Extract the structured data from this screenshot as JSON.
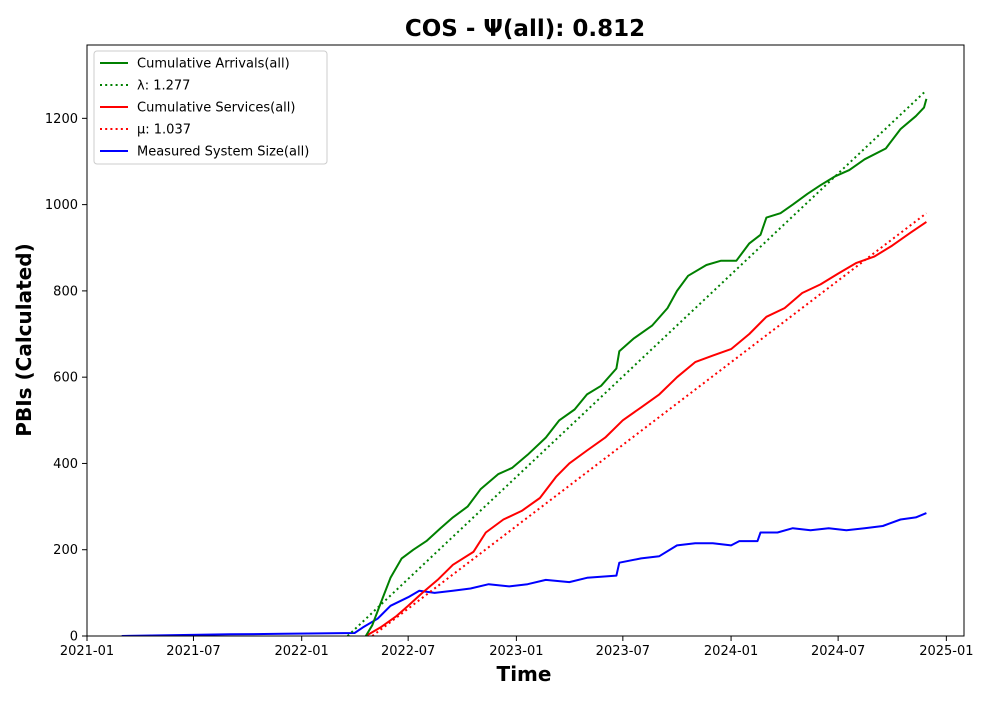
{
  "chart_data": {
    "type": "line",
    "title": "COS -  Ψ(all): 0.812",
    "xlabel": "Time",
    "ylabel": "PBIs (Calculated)",
    "xlim": [
      "2021-01-01",
      "2025-01-31"
    ],
    "ylim": [
      0,
      1370
    ],
    "x_ticks": [
      "2021-01",
      "2021-07",
      "2022-01",
      "2022-07",
      "2023-01",
      "2023-07",
      "2024-01",
      "2024-07",
      "2025-01"
    ],
    "y_ticks": [
      0,
      200,
      400,
      600,
      800,
      1000,
      1200
    ],
    "grid": false,
    "legend_position": "top-left",
    "series": [
      {
        "name": "Cumulative Arrivals(all)",
        "color": "#008000",
        "style": "solid",
        "points": [
          [
            "2022-04-20",
            0
          ],
          [
            "2022-05-01",
            25
          ],
          [
            "2022-05-15",
            75
          ],
          [
            "2022-06-01",
            135
          ],
          [
            "2022-06-20",
            180
          ],
          [
            "2022-07-10",
            200
          ],
          [
            "2022-08-01",
            220
          ],
          [
            "2022-08-25",
            250
          ],
          [
            "2022-09-15",
            275
          ],
          [
            "2022-10-10",
            300
          ],
          [
            "2022-11-01",
            340
          ],
          [
            "2022-12-01",
            375
          ],
          [
            "2022-12-25",
            390
          ],
          [
            "2023-01-20",
            420
          ],
          [
            "2023-02-20",
            460
          ],
          [
            "2023-03-15",
            500
          ],
          [
            "2023-04-10",
            525
          ],
          [
            "2023-05-01",
            560
          ],
          [
            "2023-05-25",
            580
          ],
          [
            "2023-06-20",
            620
          ],
          [
            "2023-06-25",
            660
          ],
          [
            "2023-07-20",
            690
          ],
          [
            "2023-08-20",
            720
          ],
          [
            "2023-09-15",
            760
          ],
          [
            "2023-10-01",
            800
          ],
          [
            "2023-10-20",
            835
          ],
          [
            "2023-11-20",
            860
          ],
          [
            "2023-12-15",
            870
          ],
          [
            "2024-01-10",
            870
          ],
          [
            "2024-02-01",
            910
          ],
          [
            "2024-02-20",
            930
          ],
          [
            "2024-03-01",
            970
          ],
          [
            "2024-03-25",
            980
          ],
          [
            "2024-04-15",
            1000
          ],
          [
            "2024-05-10",
            1025
          ],
          [
            "2024-06-01",
            1045
          ],
          [
            "2024-06-25",
            1065
          ],
          [
            "2024-07-20",
            1080
          ],
          [
            "2024-08-15",
            1105
          ],
          [
            "2024-09-20",
            1130
          ],
          [
            "2024-10-15",
            1175
          ],
          [
            "2024-11-10",
            1205
          ],
          [
            "2024-11-24",
            1225
          ],
          [
            "2024-11-28",
            1245
          ]
        ]
      },
      {
        "name": "λ: 1.277",
        "color": "#008000",
        "style": "dotted",
        "points": [
          [
            "2022-03-20",
            0
          ],
          [
            "2024-11-28",
            1265
          ]
        ]
      },
      {
        "name": "Cumulative Services(all)",
        "color": "#ff0000",
        "style": "solid",
        "points": [
          [
            "2022-04-20",
            0
          ],
          [
            "2022-05-15",
            20
          ],
          [
            "2022-06-10",
            45
          ],
          [
            "2022-07-01",
            70
          ],
          [
            "2022-07-25",
            100
          ],
          [
            "2022-08-20",
            130
          ],
          [
            "2022-09-15",
            165
          ],
          [
            "2022-10-20",
            195
          ],
          [
            "2022-11-10",
            240
          ],
          [
            "2022-12-10",
            270
          ],
          [
            "2023-01-10",
            290
          ],
          [
            "2023-02-10",
            320
          ],
          [
            "2023-03-10",
            370
          ],
          [
            "2023-04-01",
            400
          ],
          [
            "2023-05-01",
            430
          ],
          [
            "2023-06-01",
            460
          ],
          [
            "2023-07-01",
            500
          ],
          [
            "2023-08-01",
            530
          ],
          [
            "2023-09-01",
            560
          ],
          [
            "2023-10-01",
            600
          ],
          [
            "2023-11-01",
            635
          ],
          [
            "2023-12-01",
            650
          ],
          [
            "2024-01-01",
            665
          ],
          [
            "2024-02-01",
            700
          ],
          [
            "2024-03-01",
            740
          ],
          [
            "2024-04-01",
            760
          ],
          [
            "2024-05-01",
            795
          ],
          [
            "2024-06-01",
            815
          ],
          [
            "2024-07-01",
            840
          ],
          [
            "2024-08-01",
            865
          ],
          [
            "2024-09-01",
            880
          ],
          [
            "2024-10-01",
            905
          ],
          [
            "2024-11-01",
            935
          ],
          [
            "2024-11-28",
            960
          ]
        ]
      },
      {
        "name": "μ: 1.037",
        "color": "#ff0000",
        "style": "dotted",
        "points": [
          [
            "2022-05-01",
            0
          ],
          [
            "2024-11-28",
            980
          ]
        ]
      },
      {
        "name": "Measured System Size(all)",
        "color": "#0000ff",
        "style": "solid",
        "points": [
          [
            "2021-03-01",
            0
          ],
          [
            "2021-06-01",
            2
          ],
          [
            "2021-09-01",
            4
          ],
          [
            "2021-12-01",
            5
          ],
          [
            "2022-02-01",
            6
          ],
          [
            "2022-04-01",
            7
          ],
          [
            "2022-04-15",
            20
          ],
          [
            "2022-05-10",
            40
          ],
          [
            "2022-06-01",
            70
          ],
          [
            "2022-07-01",
            90
          ],
          [
            "2022-07-20",
            105
          ],
          [
            "2022-08-15",
            100
          ],
          [
            "2022-09-15",
            105
          ],
          [
            "2022-10-15",
            110
          ],
          [
            "2022-11-15",
            120
          ],
          [
            "2022-12-20",
            115
          ],
          [
            "2023-01-20",
            120
          ],
          [
            "2023-02-20",
            130
          ],
          [
            "2023-04-01",
            125
          ],
          [
            "2023-05-01",
            135
          ],
          [
            "2023-06-20",
            140
          ],
          [
            "2023-06-25",
            170
          ],
          [
            "2023-08-01",
            180
          ],
          [
            "2023-09-01",
            185
          ],
          [
            "2023-10-01",
            210
          ],
          [
            "2023-11-01",
            215
          ],
          [
            "2023-12-01",
            215
          ],
          [
            "2024-01-01",
            210
          ],
          [
            "2024-01-15",
            220
          ],
          [
            "2024-02-15",
            220
          ],
          [
            "2024-02-20",
            240
          ],
          [
            "2024-03-20",
            240
          ],
          [
            "2024-04-15",
            250
          ],
          [
            "2024-05-15",
            245
          ],
          [
            "2024-06-15",
            250
          ],
          [
            "2024-07-15",
            245
          ],
          [
            "2024-08-15",
            250
          ],
          [
            "2024-09-15",
            255
          ],
          [
            "2024-10-15",
            270
          ],
          [
            "2024-11-10",
            275
          ],
          [
            "2024-11-28",
            285
          ]
        ]
      }
    ]
  }
}
